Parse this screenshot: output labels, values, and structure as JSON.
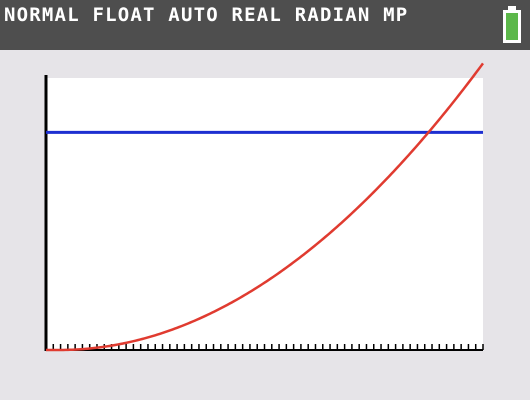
{
  "status_bar": {
    "mode_text": "NORMAL FLOAT AUTO REAL RADIAN MP",
    "battery_icon": "battery-full-icon",
    "battery_color": "#5cb84a"
  },
  "graph": {
    "background": "#ffffff",
    "axis_color": "#000000",
    "x_ticks_count": 60,
    "functions": [
      {
        "name": "",
        "type": "horizontal-line",
        "color": "#1d2fd1",
        "y": 0.8
      },
      {
        "name": "",
        "type": "parabola",
        "color": "#e03b30",
        "exponent": 2,
        "vertex_x": 0.03,
        "scale": 1.12
      }
    ],
    "window": {
      "xmin": 0,
      "xmax": 1,
      "ymin": 0,
      "ymax": 1
    }
  }
}
